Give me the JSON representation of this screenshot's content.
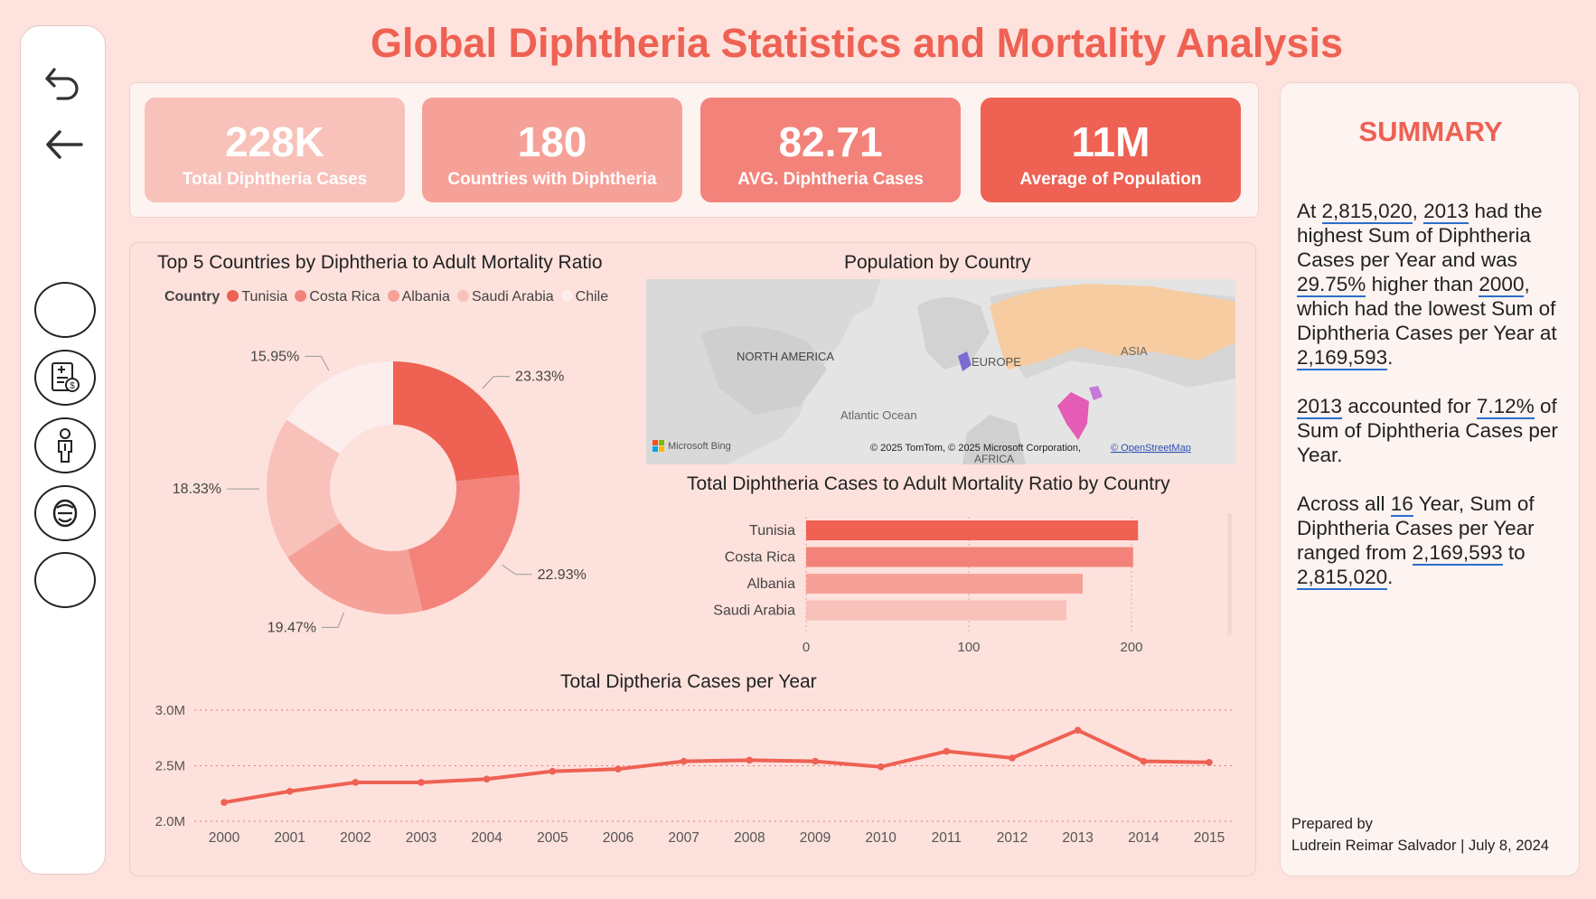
{
  "title": "Global Diphtheria Statistics and Mortality Analysis",
  "sidebar": {
    "icons": [
      "undo-icon",
      "back-arrow-icon",
      "blank-button",
      "medical-bill-icon",
      "person-icon",
      "face-icon",
      "blank-button"
    ]
  },
  "kpis": [
    {
      "value": "228K",
      "label": "Total Diphtheria Cases",
      "color": "#f8c1ba"
    },
    {
      "value": "180",
      "label": "Countries with Diphtheria",
      "color": "#f6a198"
    },
    {
      "value": "82.71",
      "label": "AVG. Diphtheria Cases",
      "color": "#f3837a"
    },
    {
      "value": "11M",
      "label": "Average of Population",
      "color": "#ee6153"
    }
  ],
  "donut": {
    "title": "Top 5 Countries by Diphtheria to Adult Mortality Ratio",
    "legend_title": "Country",
    "legend": [
      "Tunisia",
      "Costa Rica",
      "Albania",
      "Saudi Arabia",
      "Chile"
    ],
    "labels": [
      "23.33%",
      "22.93%",
      "19.47%",
      "18.33%",
      "15.95%"
    ]
  },
  "map": {
    "title": "Population by Country",
    "labels": {
      "na": "NORTH AMERICA",
      "eu": "EUROPE",
      "asia": "ASIA",
      "ocean": "Atlantic Ocean",
      "africa": "AFRICA"
    },
    "bing": "Microsoft Bing",
    "copyright": "© 2025 TomTom, © 2025 Microsoft Corporation,",
    "osm": "© OpenStreetMap"
  },
  "summary": {
    "title": "SUMMARY",
    "p1": {
      "a": "At ",
      "b": "2,815,020",
      "c": ", ",
      "d": "2013",
      "e": " had the highest Sum of Diphtheria Cases per Year and was ",
      "f": "29.75%",
      "g": " higher than ",
      "h": "2000",
      "i": ", which had the lowest Sum of Diphtheria Cases per Year at ",
      "j": "2,169,593",
      "k": "."
    },
    "p2": {
      "a": "2013",
      "b": " accounted for ",
      "c": "7.12%",
      "d": " of Sum of Diphtheria Cases per Year."
    },
    "p3": {
      "a": "Across all ",
      "b": "16",
      "c": " Year, Sum of Diphtheria Cases per Year ranged from ",
      "d": "2,169,593",
      "e": " to ",
      "f": "2,815,020",
      "g": "."
    },
    "prepared_label": "Prepared by",
    "prepared_by": "Ludrein Reimar Salvador | July 8, 2024"
  },
  "colors": {
    "accent": "#ee6153",
    "pie": [
      "#ee6153",
      "#f3837a",
      "#f6a198",
      "#f8c1ba",
      "#fbeeed"
    ]
  },
  "chart_data": [
    {
      "type": "pie",
      "title": "Top 5 Countries by Diphtheria to Adult Mortality Ratio",
      "legend_title": "Country",
      "categories": [
        "Tunisia",
        "Costa Rica",
        "Albania",
        "Saudi Arabia",
        "Chile"
      ],
      "values": [
        23.33,
        22.93,
        19.47,
        18.33,
        15.95
      ],
      "legend": "top"
    },
    {
      "type": "bar",
      "orientation": "horizontal",
      "title": "Total Diphtheria Cases to Adult Mortality Ratio by Country",
      "categories": [
        "Tunisia",
        "Costa Rica",
        "Albania",
        "Saudi Arabia"
      ],
      "values": [
        204,
        201,
        170,
        160
      ],
      "xlim": [
        0,
        250
      ],
      "ticks": [
        "0",
        "100",
        "200"
      ]
    },
    {
      "type": "line",
      "title": "Total Diptheria Cases per Year",
      "x": [
        "2000",
        "2001",
        "2002",
        "2003",
        "2004",
        "2005",
        "2006",
        "2007",
        "2008",
        "2009",
        "2010",
        "2011",
        "2012",
        "2013",
        "2014",
        "2015"
      ],
      "y": [
        2.17,
        2.27,
        2.35,
        2.35,
        2.38,
        2.45,
        2.47,
        2.54,
        2.55,
        2.54,
        2.49,
        2.63,
        2.57,
        2.82,
        2.54,
        2.53
      ],
      "ylim": [
        2.0,
        3.0
      ],
      "yticks": [
        "2.0M",
        "2.5M",
        "3.0M"
      ]
    }
  ]
}
